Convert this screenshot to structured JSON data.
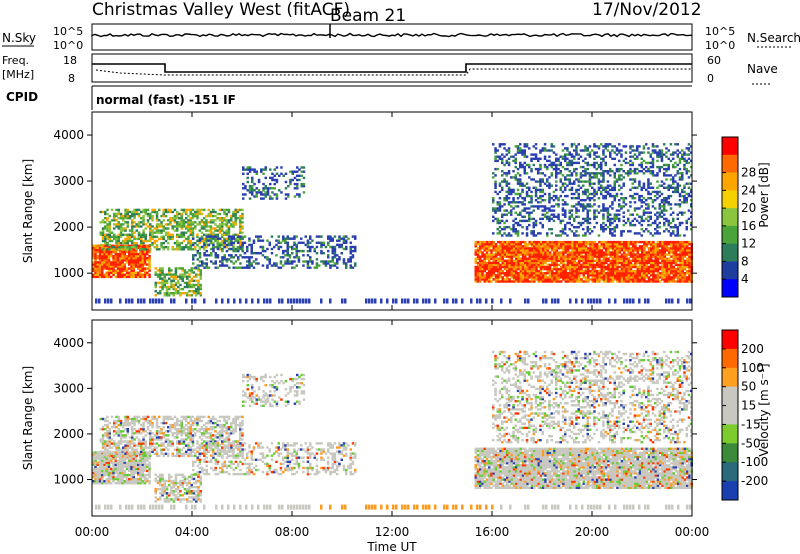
{
  "header": {
    "title": "Christmas Valley West (fitACF)",
    "beam": "Beam 21",
    "date": "17/Nov/2012"
  },
  "panels": {
    "nsky": {
      "left_label": "N.Sky",
      "left_ticks": [
        "10^5",
        "10^0"
      ],
      "right_ticks": [
        "10^5",
        "10^0"
      ],
      "right_label": "N.Search"
    },
    "freq": {
      "left_label_1": "Freq.",
      "left_label_2": "[MHz]",
      "left_ticks": [
        "18",
        "8"
      ],
      "right_ticks": [
        "60",
        "0"
      ],
      "right_label": "Nave"
    },
    "cpid": {
      "label": "CPID",
      "text": "normal (fast) -151 IF"
    }
  },
  "chart_data": [
    {
      "type": "heatmap",
      "name": "power",
      "ylabel": "Slant Range [km]",
      "y_ticks": [
        "1000",
        "2000",
        "3000",
        "4000"
      ],
      "ylim": [
        200,
        4500
      ],
      "xlim": [
        0,
        24
      ],
      "x_ticks": [
        "00:00",
        "04:00",
        "08:00",
        "12:00",
        "16:00",
        "20:00",
        "00:00"
      ],
      "colorbar": {
        "label": "Power [dB]",
        "ticks": [
          "4",
          "8",
          "12",
          "16",
          "20",
          "24",
          "28"
        ],
        "colors": [
          "#0000ff",
          "#1f3d9e",
          "#2e7d5a",
          "#4aa43a",
          "#8bc53f",
          "#f5d000",
          "#ffa500",
          "#ff6a00",
          "#ff0000"
        ]
      },
      "regions": [
        {
          "t0": 0.0,
          "t1": 2.3,
          "r0": 900,
          "r1": 1600,
          "level": "high"
        },
        {
          "t0": 0.3,
          "t1": 6.0,
          "r0": 1500,
          "r1": 2400,
          "level": "mid"
        },
        {
          "t0": 2.5,
          "t1": 4.3,
          "r0": 500,
          "r1": 1100,
          "level": "mid"
        },
        {
          "t0": 4.0,
          "t1": 10.5,
          "r0": 1100,
          "r1": 1800,
          "level": "low"
        },
        {
          "t0": 6.0,
          "t1": 8.5,
          "r0": 2600,
          "r1": 3300,
          "level": "low"
        },
        {
          "t0": 15.3,
          "t1": 24.0,
          "r0": 800,
          "r1": 1700,
          "level": "high"
        },
        {
          "t0": 16.0,
          "t1": 24.0,
          "r0": 1800,
          "r1": 3800,
          "level": "low"
        }
      ]
    },
    {
      "type": "heatmap",
      "name": "velocity",
      "ylabel": "Slant Range [km]",
      "y_ticks": [
        "1000",
        "2000",
        "3000",
        "4000"
      ],
      "ylim": [
        200,
        4500
      ],
      "xlim": [
        0,
        24
      ],
      "xlabel": "Time UT",
      "x_ticks": [
        "00:00",
        "04:00",
        "08:00",
        "12:00",
        "16:00",
        "20:00",
        "00:00"
      ],
      "colorbar": {
        "label": "Velocity [m s⁻¹]",
        "ticks": [
          "200",
          "100",
          "50",
          "15",
          "-15",
          "-50",
          "-100",
          "-200"
        ],
        "colors": [
          "#1a3fb0",
          "#2a6a7a",
          "#3a8a3a",
          "#7dcc2e",
          "#c8c8c0",
          "#c8c8c0",
          "#ffa020",
          "#ff6a00",
          "#ff0000"
        ]
      }
    }
  ],
  "colors": {
    "grey": "#c8c8c0",
    "green": "#66cc33",
    "blue": "#2a3fb0",
    "orange": "#ff9a20",
    "red": "#ff2a00"
  }
}
